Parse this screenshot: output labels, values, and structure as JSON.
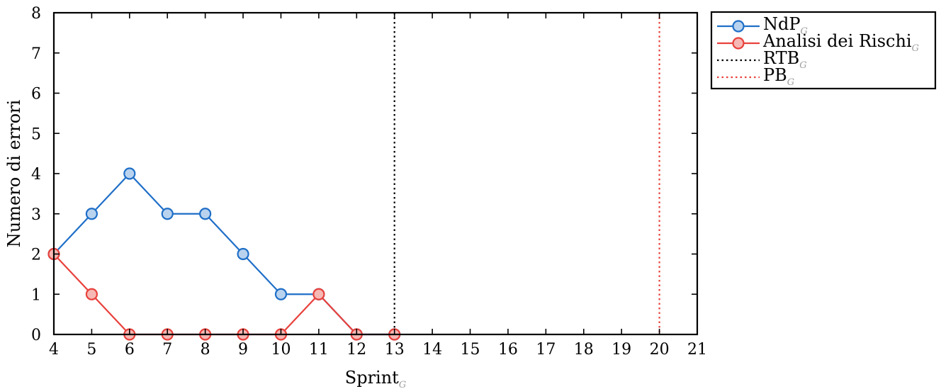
{
  "chart_data": {
    "type": "line",
    "xlabel": "Sprint",
    "xlabel_subscript": "G",
    "ylabel": "Numero di errori",
    "xlim": [
      4,
      21
    ],
    "ylim": [
      0,
      8
    ],
    "x_ticks": [
      4,
      5,
      6,
      7,
      8,
      9,
      10,
      11,
      12,
      13,
      14,
      15,
      16,
      17,
      18,
      19,
      20,
      21
    ],
    "y_ticks": [
      0,
      1,
      2,
      3,
      4,
      5,
      6,
      7,
      8
    ],
    "grid": false,
    "legend_position": "outside-top-right",
    "series": [
      {
        "name": "NdP",
        "subscript": "G",
        "color": "#1f6fc8",
        "marker_fill": "#b9d3ef",
        "x": [
          4,
          5,
          6,
          7,
          8,
          9,
          10,
          11,
          12,
          13
        ],
        "values": [
          2,
          3,
          4,
          3,
          3,
          2,
          1,
          1,
          0,
          0
        ]
      },
      {
        "name": "Analisi dei Rischi",
        "subscript": "G",
        "color": "#e8413c",
        "marker_fill": "#f6b8b4",
        "x": [
          4,
          5,
          6,
          7,
          8,
          9,
          10,
          11,
          12,
          13
        ],
        "values": [
          2,
          1,
          0,
          0,
          0,
          0,
          0,
          1,
          0,
          0
        ]
      }
    ],
    "vertical_lines": [
      {
        "name": "RTB",
        "subscript": "G",
        "x": 13,
        "color": "#000000"
      },
      {
        "name": "PB",
        "subscript": "G",
        "x": 20,
        "color": "#e8413c"
      }
    ]
  }
}
